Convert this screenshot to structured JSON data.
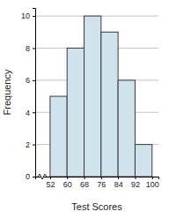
{
  "chart_data": {
    "type": "histogram",
    "x_label": "Test Scores",
    "y_label": "Frequency",
    "bins": [
      52,
      60,
      68,
      76,
      84,
      92,
      100
    ],
    "values": [
      5,
      8,
      10,
      9,
      6,
      2
    ],
    "color": "#cfe3ec",
    "xlim": [
      45,
      103
    ],
    "xticks": [
      52,
      60,
      68,
      76,
      84,
      92,
      100
    ],
    "ylim": [
      0,
      10.5
    ],
    "yticks": [
      0,
      2,
      4,
      6,
      8,
      10
    ],
    "grid": true
  }
}
